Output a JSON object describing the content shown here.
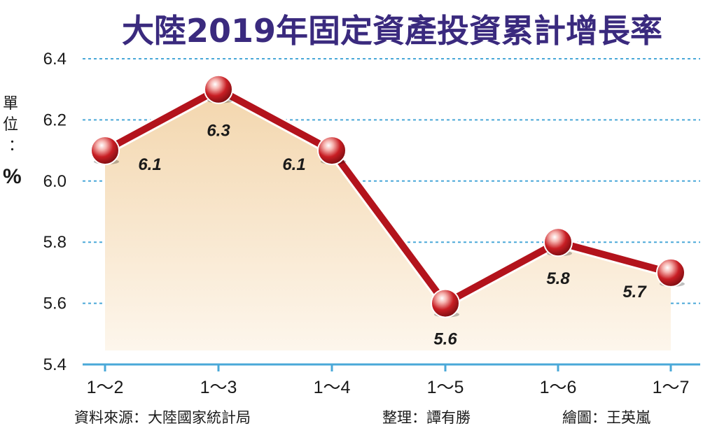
{
  "chart_data": {
    "type": "line",
    "title": "大陸2019年固定資產投資累計增長率",
    "unit_label": "單位：",
    "unit_symbol": "%",
    "categories": [
      "1～2",
      "1～3",
      "1～4",
      "1～5",
      "1～6",
      "1～7"
    ],
    "values": [
      6.1,
      6.3,
      6.1,
      5.6,
      5.8,
      5.7
    ],
    "data_labels": [
      "6.1",
      "6.3",
      "6.1",
      "5.6",
      "5.8",
      "5.7"
    ],
    "ylim": [
      5.4,
      6.4
    ],
    "yticks": [
      5.4,
      5.6,
      5.8,
      6.0,
      6.2,
      6.4
    ],
    "ytick_labels": [
      "5.4",
      "5.6",
      "5.8",
      "6.0",
      "6.2",
      "6.4"
    ],
    "grid": true,
    "colors": {
      "title": "#3a2a7e",
      "line": "#b3131c",
      "marker": "#c81e24",
      "grid": "#4aa8d8",
      "axis": "#4aa8d8",
      "fill_top": "#f3d6ad",
      "fill_bottom": "#fdf6ec"
    }
  },
  "credits": {
    "source": "資料來源：大陸國家統計局",
    "editor": "整理：譚有勝",
    "artist": "繪圖：王英嵐"
  }
}
